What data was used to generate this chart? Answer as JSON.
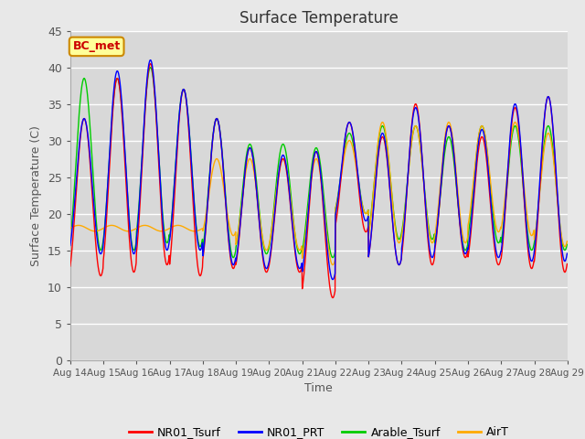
{
  "title": "Surface Temperature",
  "xlabel": "Time",
  "ylabel": "Surface Temperature (C)",
  "ylim": [
    0,
    45
  ],
  "yticks": [
    0,
    5,
    10,
    15,
    20,
    25,
    30,
    35,
    40,
    45
  ],
  "xtick_labels": [
    "Aug 14",
    "Aug 15",
    "Aug 16",
    "Aug 17",
    "Aug 18",
    "Aug 19",
    "Aug 20",
    "Aug 21",
    "Aug 22",
    "Aug 23",
    "Aug 24",
    "Aug 25",
    "Aug 26",
    "Aug 27",
    "Aug 28",
    "Aug 29"
  ],
  "legend_labels": [
    "NR01_Tsurf",
    "NR01_PRT",
    "Arable_Tsurf",
    "AirT"
  ],
  "line_colors": [
    "#ff0000",
    "#0000ff",
    "#00cc00",
    "#ffaa00"
  ],
  "annotation_text": "BC_met",
  "annotation_color": "#cc0000",
  "annotation_bg": "#ffff99",
  "annotation_border": "#cc8800",
  "fig_bg": "#e8e8e8",
  "plot_bg": "#d8d8d8",
  "daily_peaks": [
    33,
    38.5,
    40.5,
    37.0,
    33,
    29,
    27.5,
    28.5,
    32.5,
    30.5,
    35,
    32,
    30.5,
    34.5,
    36
  ],
  "daily_mins": [
    11.5,
    12,
    13,
    11.5,
    12.5,
    12,
    12,
    8.5,
    17.5,
    13,
    13,
    14,
    13,
    12.5,
    12
  ],
  "prt_peaks": [
    33,
    39.5,
    41,
    37,
    33,
    29,
    28,
    28.5,
    32.5,
    31,
    34.5,
    32,
    31.5,
    35,
    36
  ],
  "prt_mins": [
    14.5,
    14.5,
    15,
    15,
    13,
    12.5,
    12.5,
    11,
    19,
    13,
    14,
    14.5,
    14,
    13.5,
    13.5
  ],
  "arable_peaks": [
    38.5,
    38.5,
    40,
    37,
    33,
    29.5,
    29.5,
    29,
    31,
    32,
    32,
    30.5,
    32,
    32,
    32
  ],
  "arable_mins": [
    15,
    15,
    16,
    15.5,
    14,
    14.5,
    14.5,
    14,
    20,
    16.5,
    16.5,
    15,
    16,
    15,
    15
  ],
  "air_peaks": [
    18.5,
    18.5,
    18.5,
    18.5,
    27.5,
    27.5,
    27.5,
    27.5,
    30,
    32.5,
    32,
    32.5,
    32,
    32.5,
    31
  ],
  "air_mins": [
    17.5,
    17.5,
    17.5,
    17.5,
    17,
    15,
    15,
    13,
    20,
    16,
    16,
    16,
    17.5,
    17,
    15.5
  ]
}
